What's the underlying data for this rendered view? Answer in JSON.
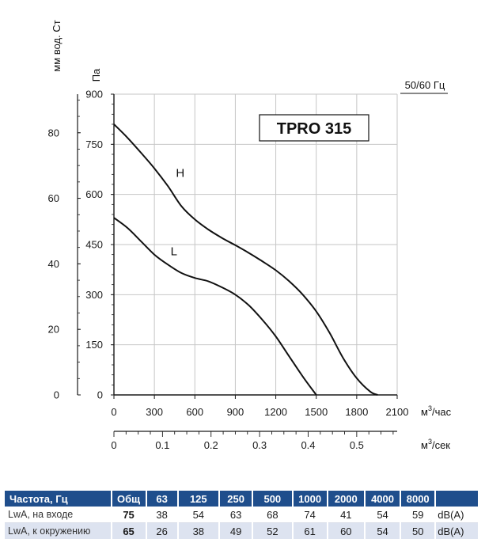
{
  "chart_data": {
    "type": "line",
    "title": "TPRO 315",
    "frequency_label": "50/60 Гц",
    "ylabel_left": "мм вод. Ст",
    "ylabel_right": "Па",
    "xlabel": "м³/час",
    "xlabel2": "м³/сек",
    "xlim": [
      0,
      2100
    ],
    "ylim": [
      0,
      900
    ],
    "x_ticks": [
      0,
      300,
      600,
      900,
      1200,
      1500,
      1800,
      2100
    ],
    "y_ticks": [
      0,
      150,
      300,
      450,
      600,
      750,
      900
    ],
    "y2_ticks": [
      0,
      20,
      40,
      60,
      80
    ],
    "x2_ticks": [
      "0",
      "0.1",
      "0.2",
      "0.3",
      "0.4",
      "0.5"
    ],
    "x2_tick_values": [
      0,
      0.1,
      0.2,
      0.3,
      0.4,
      0.5
    ],
    "grid": true,
    "series": [
      {
        "name": "H",
        "x": [
          0,
          100,
          200,
          300,
          400,
          500,
          600,
          700,
          800,
          900,
          1000,
          1100,
          1200,
          1300,
          1400,
          1500,
          1600,
          1700,
          1800,
          1900,
          1955
        ],
        "y": [
          810,
          770,
          725,
          678,
          625,
          565,
          525,
          495,
          470,
          448,
          425,
          400,
          373,
          340,
          300,
          250,
          185,
          110,
          50,
          10,
          0
        ]
      },
      {
        "name": "L",
        "x": [
          0,
          100,
          200,
          300,
          400,
          500,
          600,
          700,
          800,
          900,
          1000,
          1100,
          1200,
          1300,
          1400,
          1500
        ],
        "y": [
          530,
          500,
          460,
          420,
          390,
          365,
          350,
          340,
          322,
          300,
          268,
          225,
          175,
          115,
          55,
          0
        ]
      }
    ]
  },
  "table": {
    "headers": [
      "Частота, Гц",
      "Общ",
      "63",
      "125",
      "250",
      "500",
      "1000",
      "2000",
      "4000",
      "8000",
      ""
    ],
    "rows": [
      {
        "label": "LwA, на входе",
        "total": "75",
        "values": [
          "38",
          "54",
          "63",
          "68",
          "74",
          "41",
          "54",
          "59"
        ],
        "unit": "dB(A)"
      },
      {
        "label": "LwA, к окружению",
        "total": "65",
        "values": [
          "26",
          "38",
          "49",
          "52",
          "61",
          "60",
          "54",
          "50"
        ],
        "unit": "dB(A)"
      }
    ]
  }
}
